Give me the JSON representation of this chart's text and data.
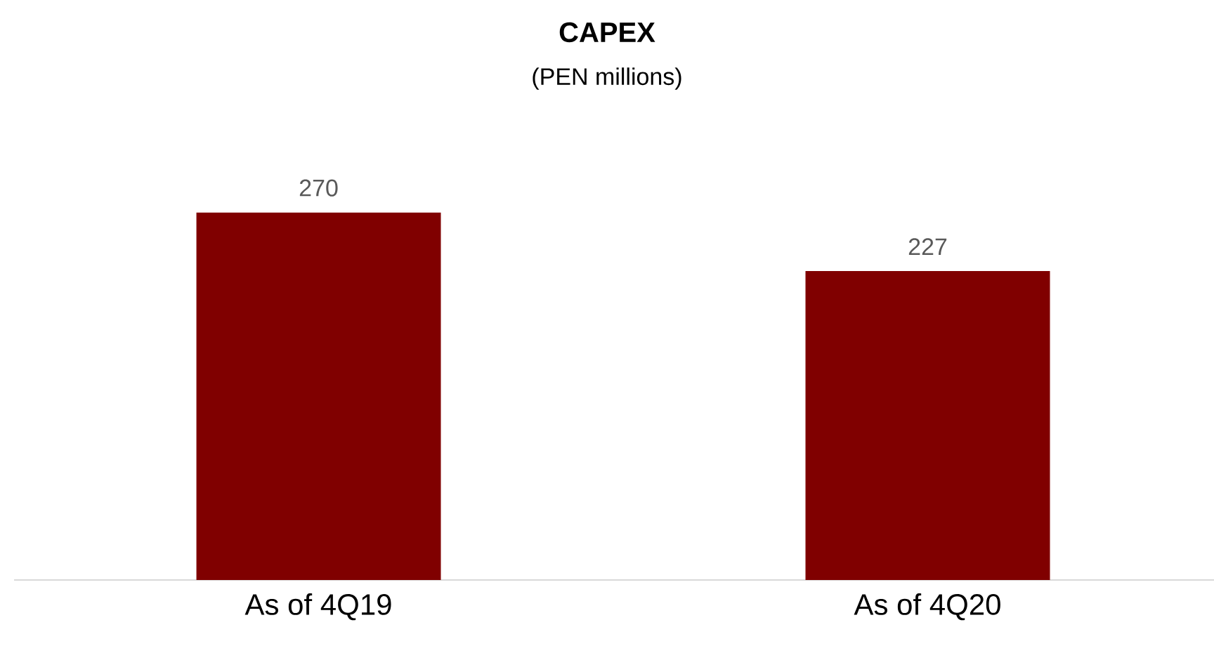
{
  "chart_data": {
    "type": "bar",
    "title": "CAPEX",
    "subtitle": "(PEN millions)",
    "categories": [
      "As of 4Q19",
      "As of 4Q20"
    ],
    "values": [
      270,
      227
    ],
    "color": "#800000",
    "tick_labels": "x",
    "data_labels": true
  }
}
